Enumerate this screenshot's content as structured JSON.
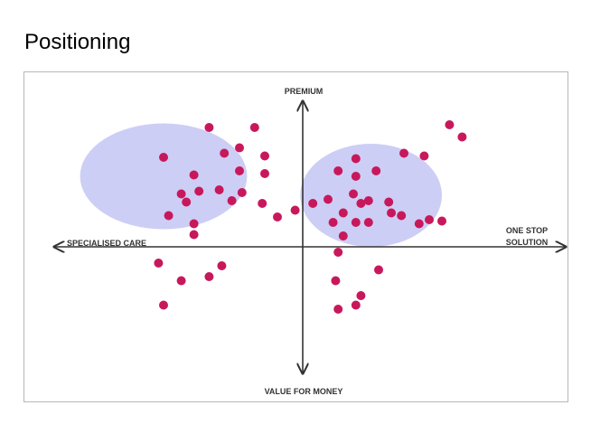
{
  "page": {
    "title": "Positioning"
  },
  "chart_data": {
    "type": "scatter",
    "title": "",
    "axes": {
      "top_label": "PREMIUM",
      "bottom_label": "VALUE FOR MONEY",
      "left_label": "SPECIALISED CARE",
      "right_label_lines": [
        "ONE STOP",
        "SOLUTION"
      ]
    },
    "xlim": [
      -10,
      10
    ],
    "ylim": [
      -10,
      10
    ],
    "grid": false,
    "colors": {
      "points": "#c8185c",
      "clusters": "#c4c6f3",
      "axes": "#333333"
    },
    "clusters": [
      {
        "cx": -5.5,
        "cy": 5.2,
        "rx": 3.3,
        "ry": 3.9
      },
      {
        "cx": 2.7,
        "cy": 3.8,
        "rx": 2.8,
        "ry": 3.8
      }
    ],
    "points": [
      {
        "x": -3.7,
        "y": 8.8
      },
      {
        "x": -1.9,
        "y": 8.8
      },
      {
        "x": -5.5,
        "y": 6.6
      },
      {
        "x": -3.1,
        "y": 6.9
      },
      {
        "x": -2.5,
        "y": 7.3
      },
      {
        "x": -1.5,
        "y": 6.7
      },
      {
        "x": -4.3,
        "y": 5.3
      },
      {
        "x": -2.5,
        "y": 5.6
      },
      {
        "x": -1.5,
        "y": 5.4
      },
      {
        "x": -4.8,
        "y": 3.9
      },
      {
        "x": -4.1,
        "y": 4.1
      },
      {
        "x": -3.3,
        "y": 4.2
      },
      {
        "x": -2.4,
        "y": 4.0
      },
      {
        "x": -4.6,
        "y": 3.3
      },
      {
        "x": -2.8,
        "y": 3.4
      },
      {
        "x": -1.6,
        "y": 3.2
      },
      {
        "x": -5.3,
        "y": 2.3
      },
      {
        "x": -4.3,
        "y": 1.7
      },
      {
        "x": -4.3,
        "y": 0.9
      },
      {
        "x": -1.0,
        "y": 2.2
      },
      {
        "x": -0.3,
        "y": 2.7
      },
      {
        "x": 0.4,
        "y": 3.2
      },
      {
        "x": 1.0,
        "y": 3.5
      },
      {
        "x": 1.4,
        "y": 5.6
      },
      {
        "x": 2.1,
        "y": 6.5
      },
      {
        "x": 2.1,
        "y": 5.2
      },
      {
        "x": 2.9,
        "y": 5.6
      },
      {
        "x": 4.0,
        "y": 6.9
      },
      {
        "x": 4.8,
        "y": 6.7
      },
      {
        "x": 2.0,
        "y": 3.9
      },
      {
        "x": 2.6,
        "y": 3.4
      },
      {
        "x": 2.3,
        "y": 3.2
      },
      {
        "x": 1.6,
        "y": 2.5
      },
      {
        "x": 3.4,
        "y": 3.3
      },
      {
        "x": 3.5,
        "y": 2.5
      },
      {
        "x": 3.9,
        "y": 2.3
      },
      {
        "x": 1.2,
        "y": 1.8
      },
      {
        "x": 2.1,
        "y": 1.8
      },
      {
        "x": 2.6,
        "y": 1.8
      },
      {
        "x": 4.6,
        "y": 1.7
      },
      {
        "x": 5.0,
        "y": 2.0
      },
      {
        "x": 5.5,
        "y": 1.9
      },
      {
        "x": 1.6,
        "y": 0.8
      },
      {
        "x": 1.4,
        "y": -0.4
      },
      {
        "x": 5.8,
        "y": 9.0
      },
      {
        "x": 6.3,
        "y": 8.1
      },
      {
        "x": -5.7,
        "y": -1.2
      },
      {
        "x": -3.2,
        "y": -1.4
      },
      {
        "x": -3.7,
        "y": -2.2
      },
      {
        "x": -4.8,
        "y": -2.5
      },
      {
        "x": -5.5,
        "y": -4.3
      },
      {
        "x": 3.0,
        "y": -1.7
      },
      {
        "x": 1.3,
        "y": -2.5
      },
      {
        "x": 2.3,
        "y": -3.6
      },
      {
        "x": 2.1,
        "y": -4.3
      },
      {
        "x": 1.4,
        "y": -4.6
      }
    ]
  }
}
